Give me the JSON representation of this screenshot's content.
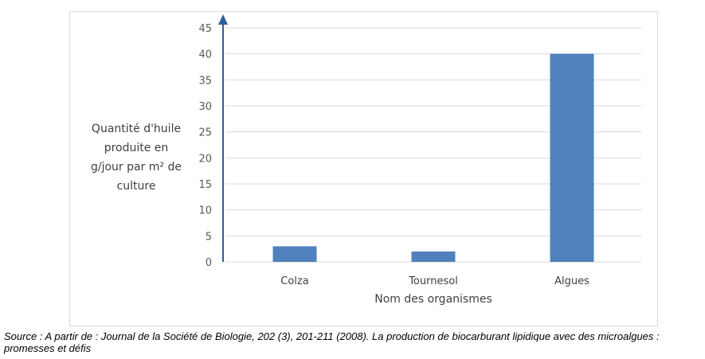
{
  "chart_data": {
    "type": "bar",
    "categories": [
      "Colza",
      "Tournesol",
      "Algues"
    ],
    "values": [
      3,
      2,
      40
    ],
    "xlabel": "Nom des organismes",
    "ylabel": "Quantité d'huile\nproduite en\ng/jour par m² de\nculture",
    "ylim": [
      0,
      45
    ],
    "yticks": [
      0,
      5,
      10,
      15,
      20,
      25,
      30,
      35,
      40,
      45
    ],
    "grid": true,
    "bar_color": "#4f81bd",
    "axis_arrow_color": "#2e5e9e"
  },
  "source": "Source : A partir de : Journal de la Société de Biologie, 202 (3), 201-211 (2008). La production de biocarburant lipidique avec des microalgues : promesses et défis"
}
